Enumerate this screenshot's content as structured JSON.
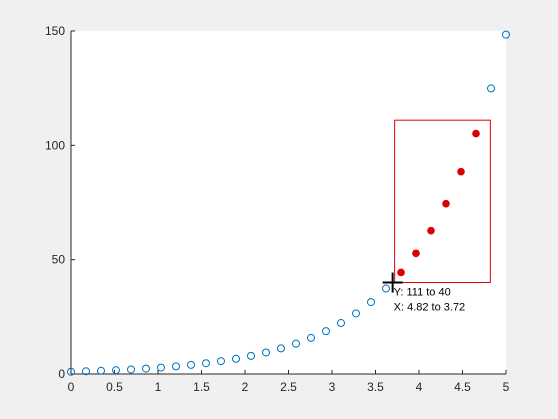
{
  "chart_data": {
    "type": "scatter",
    "title": "",
    "xlabel": "",
    "ylabel": "",
    "xlim": [
      0,
      5
    ],
    "ylim": [
      0,
      150
    ],
    "grid": false,
    "xticks": [
      "0",
      "0.5",
      "1",
      "1.5",
      "2",
      "2.5",
      "3",
      "3.5",
      "4",
      "4.5",
      "5"
    ],
    "yticks": [
      "0",
      "50",
      "100",
      "150"
    ],
    "series": [
      {
        "marker": "open-circle",
        "color": "#0072BD",
        "x": [
          0,
          0.1724,
          0.3448,
          0.5172,
          0.6897,
          0.8621,
          1.0345,
          1.2069,
          1.3793,
          1.5517,
          1.7241,
          1.8966,
          2.069,
          2.2414,
          2.4138,
          2.5862,
          2.7586,
          2.931,
          3.1034,
          3.2759,
          3.4483,
          3.6207,
          3.7931,
          3.9655,
          4.1379,
          4.3103,
          4.4828,
          4.6552,
          4.8276,
          5.0
        ],
        "y": [
          1.0,
          1.19,
          1.41,
          1.68,
          1.99,
          2.37,
          2.81,
          3.34,
          3.97,
          4.72,
          5.61,
          6.66,
          7.92,
          9.41,
          11.18,
          13.28,
          15.78,
          18.75,
          22.28,
          26.47,
          31.45,
          37.37,
          44.4,
          52.76,
          62.68,
          74.47,
          88.48,
          105.13,
          124.9,
          148.41
        ]
      }
    ],
    "selection": {
      "color": "#DD0000",
      "x_range": [
        3.72,
        4.82
      ],
      "y_range": [
        40,
        111
      ],
      "highlighted_x": [
        3.7931,
        3.9655,
        4.1379,
        4.3103,
        4.4828,
        4.6552
      ],
      "highlighted_y": [
        44.4,
        52.76,
        62.68,
        74.47,
        88.48,
        105.13
      ]
    },
    "annotations": {
      "y_readout": "Y: 111 to 40",
      "x_readout": "X: 4.82 to 3.72"
    }
  }
}
